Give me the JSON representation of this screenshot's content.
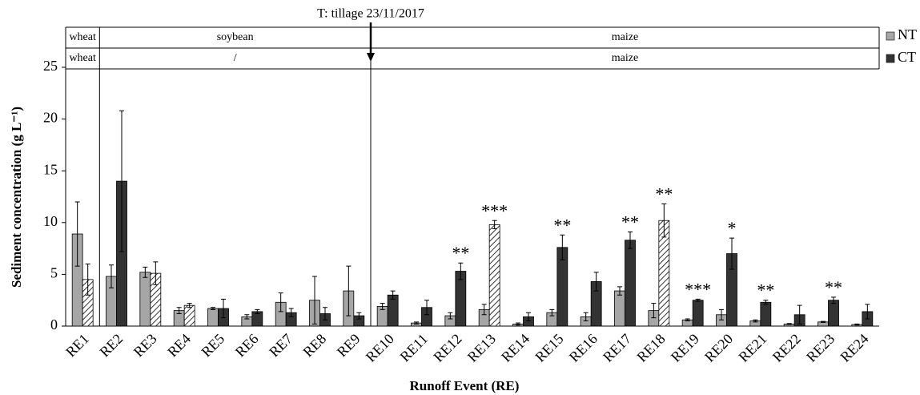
{
  "chart_data": {
    "type": "bar",
    "annotation": {
      "text": "T: tillage 23/11/2017",
      "after": "RE9"
    },
    "crop_rows": [
      [
        {
          "label": "wheat",
          "from": "RE1",
          "to": "RE1"
        },
        {
          "label": "soybean",
          "from": "RE2",
          "to": "RE9"
        },
        {
          "label": "maize",
          "from": "RE10",
          "to": "RE24"
        }
      ],
      [
        {
          "label": "wheat",
          "from": "RE1",
          "to": "RE1"
        },
        {
          "label": "/",
          "from": "RE2",
          "to": "RE9"
        },
        {
          "label": "maize",
          "from": "RE10",
          "to": "RE24"
        }
      ]
    ],
    "x_label": "Runoff Event (RE)",
    "y_label": "Sediment concentration (g L⁻¹)",
    "categories": [
      "RE1",
      "RE2",
      "RE3",
      "RE4",
      "RE5",
      "RE6",
      "RE7",
      "RE8",
      "RE9",
      "RE10",
      "RE11",
      "RE12",
      "RE13",
      "RE14",
      "RE15",
      "RE16",
      "RE17",
      "RE18",
      "RE19",
      "RE20",
      "RE21",
      "RE22",
      "RE23",
      "RE24"
    ],
    "series": [
      {
        "name": "NT",
        "color": "#a6a6a6",
        "values": [
          8.9,
          4.8,
          5.2,
          1.5,
          1.7,
          0.9,
          2.3,
          2.5,
          3.4,
          1.9,
          0.3,
          1.0,
          1.6,
          0.2,
          1.3,
          0.9,
          3.4,
          1.5,
          0.6,
          1.1,
          0.5,
          0.2,
          0.4,
          0.15
        ],
        "errors": [
          3.1,
          1.1,
          0.5,
          0.3,
          0.1,
          0.2,
          0.9,
          2.3,
          2.4,
          0.3,
          0.1,
          0.3,
          0.5,
          0.1,
          0.3,
          0.4,
          0.4,
          0.7,
          0.1,
          0.5,
          0.1,
          0.05,
          0.05,
          0.05
        ]
      },
      {
        "name": "CT",
        "color": "#333333",
        "values": [
          4.5,
          14.0,
          5.1,
          2.0,
          1.7,
          1.4,
          1.3,
          1.2,
          1.0,
          3.0,
          1.8,
          5.3,
          9.8,
          0.9,
          7.6,
          4.3,
          8.3,
          10.2,
          2.5,
          7.0,
          2.3,
          1.1,
          2.5,
          1.4
        ],
        "errors": [
          1.5,
          6.8,
          1.1,
          0.2,
          0.9,
          0.2,
          0.4,
          0.6,
          0.3,
          0.4,
          0.7,
          0.8,
          0.4,
          0.4,
          1.2,
          0.9,
          0.8,
          1.6,
          0.1,
          1.5,
          0.2,
          0.9,
          0.3,
          0.7
        ],
        "hatched": [
          true,
          false,
          true,
          true,
          false,
          false,
          false,
          false,
          false,
          false,
          false,
          false,
          true,
          false,
          false,
          false,
          false,
          true,
          false,
          false,
          false,
          false,
          false,
          false
        ]
      }
    ],
    "significance": [
      null,
      null,
      null,
      null,
      null,
      null,
      null,
      null,
      null,
      null,
      null,
      "**",
      "***",
      null,
      "**",
      null,
      "**",
      "**",
      "***",
      "*",
      "**",
      null,
      "**",
      null
    ],
    "ylim": [
      0,
      25
    ],
    "yticks": [
      0,
      5,
      10,
      15,
      20,
      25
    ],
    "legend": "right"
  }
}
